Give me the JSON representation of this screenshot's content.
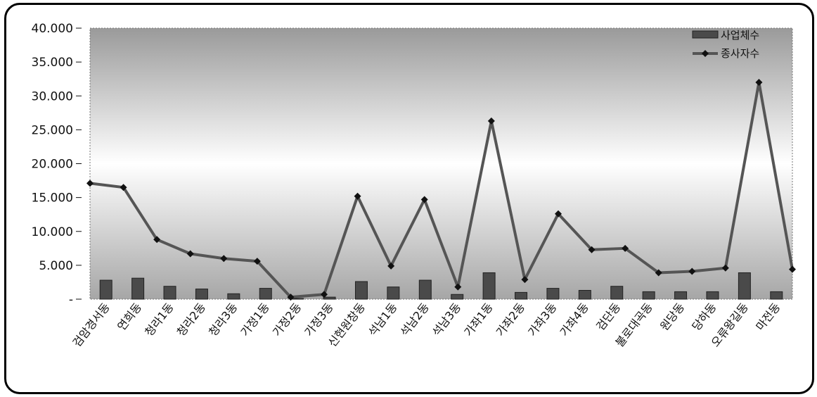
{
  "chart_data": {
    "type": "bar",
    "categories": [
      "검암경서동",
      "연희동",
      "청라1동",
      "청라2동",
      "청라3동",
      "가정1동",
      "가정2동",
      "가정3동",
      "신현원창동",
      "석남1동",
      "석남2동",
      "석남3동",
      "가좌1동",
      "가좌2동",
      "가좌3동",
      "가좌4동",
      "검단동",
      "불로대곡동",
      "원당동",
      "당하동",
      "오류왕길동",
      "마전동"
    ],
    "series": [
      {
        "name": "사업체수",
        "kind": "bar",
        "color": "#4a4a4a",
        "values": [
          2800,
          3100,
          1900,
          1500,
          800,
          1600,
          100,
          300,
          2600,
          1800,
          2800,
          700,
          3900,
          1000,
          1600,
          1300,
          1900,
          1100,
          1100,
          1100,
          3900,
          1100
        ]
      },
      {
        "name": "종사자수",
        "kind": "line",
        "color": "#555555",
        "values": [
          17100,
          16500,
          8800,
          6700,
          6000,
          5600,
          300,
          700,
          15200,
          4900,
          14700,
          1800,
          26300,
          2900,
          12600,
          7300,
          7500,
          3900,
          4100,
          4600,
          32000,
          4400
        ]
      }
    ],
    "y_ticks": [
      "-",
      "5.000",
      "10.000",
      "15.000",
      "20.000",
      "25.000",
      "30.000",
      "35.000",
      "40.000"
    ],
    "ylim": [
      0,
      40000
    ],
    "title": "",
    "xlabel": "",
    "ylabel": "",
    "legend_position": "top-right",
    "grid": false
  }
}
